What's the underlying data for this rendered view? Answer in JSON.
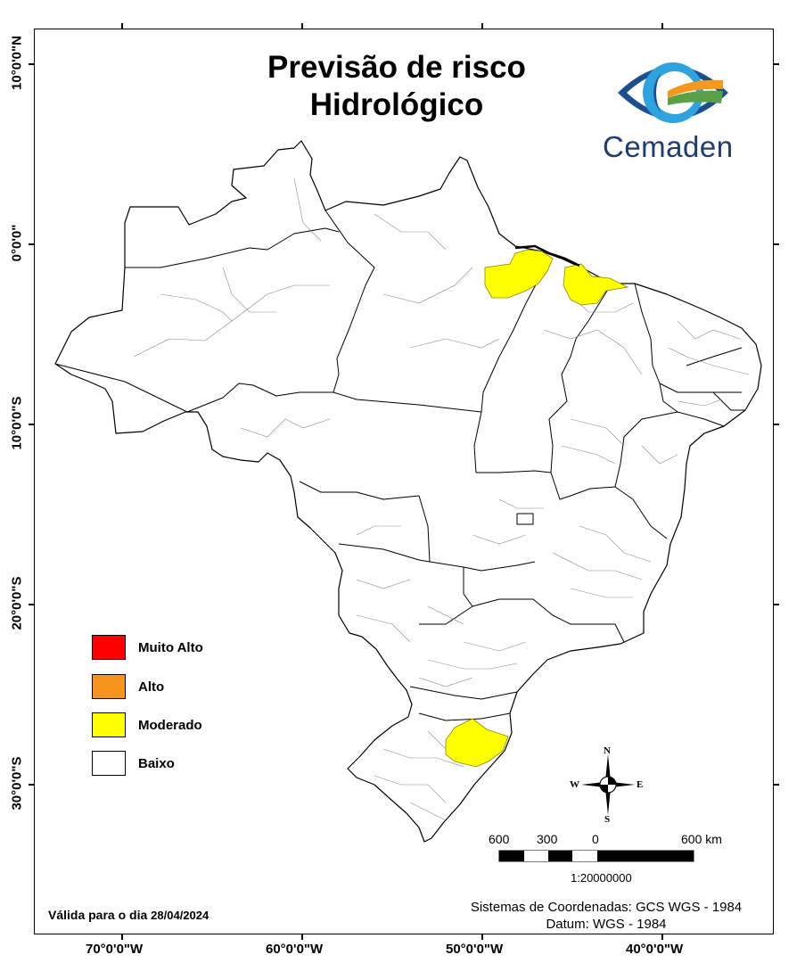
{
  "title": {
    "line1": "Previsão de risco",
    "line2": "Hidrológico"
  },
  "logo": {
    "name": "Cemaden",
    "icon": "cemaden-eye-logo-icon",
    "colors": {
      "blue": "#1d4f8f",
      "light_blue": "#2ea3de",
      "green": "#5aa046",
      "orange": "#f39a1e"
    }
  },
  "axes": {
    "latitude": [
      "10°0'0\"N",
      "0°0'0\"",
      "10°0'0\"S",
      "20°0'0\"S",
      "30°0'0\"S"
    ],
    "longitude": [
      "70°0'0\"W",
      "60°0'0\"W",
      "50°0'0\"W",
      "40°0'0\"W"
    ]
  },
  "legend": [
    {
      "label": "Muito Alto",
      "color": "#ff0000"
    },
    {
      "label": "Alto",
      "color": "#f7941d"
    },
    {
      "label": "Moderado",
      "color": "#ffff00"
    },
    {
      "label": "Baixo",
      "color": "#ffffff"
    }
  ],
  "compass": {
    "n": "N",
    "s": "S",
    "e": "E",
    "w": "W",
    "icon": "compass-rose-icon"
  },
  "scale_bar": {
    "labels": [
      "600",
      "300",
      "0",
      "600 km"
    ],
    "ratio": "1:20000000"
  },
  "valid_date": {
    "prefix": "Válida para o dia",
    "date": "28/04/2024"
  },
  "coordinate_system": {
    "line1": "Sistemas de Coordenadas: GCS WGS - 1984",
    "line2": "Datum: WGS - 1984"
  },
  "map": {
    "country": "Brazil",
    "moderate_color": "#ffff00",
    "low_color": "#ffffff"
  }
}
